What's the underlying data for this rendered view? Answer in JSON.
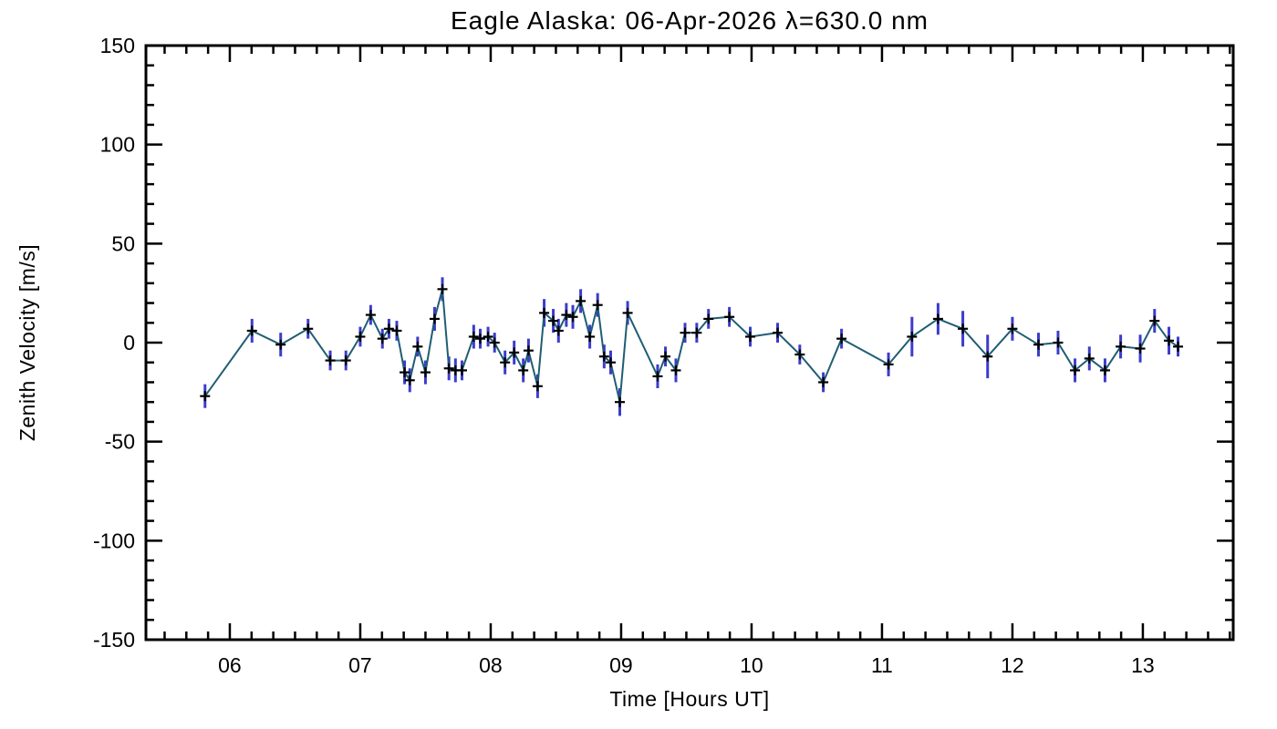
{
  "title": "Eagle Alaska: 06-Apr-2026 λ=630.0 nm",
  "chart_data": {
    "type": "line",
    "title": "Eagle Alaska: 06-Apr-2026 λ=630.0 nm",
    "xlabel": "Time [Hours UT]",
    "ylabel": "Zenith Velocity [m/s]",
    "xlim": [
      5.357,
      13.693
    ],
    "ylim": [
      -150,
      150
    ],
    "x_major_ticks": [
      6,
      7,
      8,
      9,
      10,
      11,
      12,
      13
    ],
    "x_tick_labels": [
      "06",
      "07",
      "08",
      "09",
      "10",
      "11",
      "12",
      "13"
    ],
    "x_minor_step": 0.16667,
    "y_major_step": 50,
    "y_minor_step": 10,
    "y_tick_labels": [
      "150",
      "100",
      "50",
      "0",
      "-50",
      "-100",
      "-150"
    ],
    "y_tick_values": [
      150,
      100,
      50,
      0,
      -50,
      -100,
      -150
    ],
    "grid": false,
    "legend": "none",
    "marker": "plus",
    "error_bars": "vertical",
    "colors": {
      "line": "#1f5d73",
      "error_bar": "#3c3ccd",
      "marker": "#000000",
      "axis": "#000000",
      "background": "#ffffff"
    },
    "series": [
      {
        "name": "zenith-velocity",
        "x": [
          5.81,
          6.17,
          6.39,
          6.6,
          6.77,
          6.89,
          7.0,
          7.08,
          7.17,
          7.22,
          7.28,
          7.34,
          7.38,
          7.44,
          7.5,
          7.57,
          7.63,
          7.68,
          7.73,
          7.78,
          7.87,
          7.92,
          7.98,
          8.03,
          8.11,
          8.18,
          8.25,
          8.29,
          8.36,
          8.41,
          8.48,
          8.52,
          8.58,
          8.63,
          8.69,
          8.76,
          8.82,
          8.87,
          8.92,
          8.99,
          9.05,
          9.28,
          9.34,
          9.42,
          9.49,
          9.58,
          9.67,
          9.83,
          9.99,
          10.2,
          10.37,
          10.55,
          10.69,
          11.05,
          11.23,
          11.43,
          11.62,
          11.81,
          12.0,
          12.2,
          12.35,
          12.48,
          12.59,
          12.71,
          12.83,
          12.98,
          13.09,
          13.2,
          13.27
        ],
        "y": [
          -27,
          6,
          -1,
          7,
          -9,
          -9,
          3,
          14,
          2,
          7,
          6,
          -15,
          -19,
          -2,
          -15,
          12,
          27,
          -13,
          -14,
          -14,
          3,
          2,
          3,
          0,
          -10,
          -5,
          -14,
          -4,
          -22,
          15,
          11,
          6,
          14,
          13,
          21,
          3,
          19,
          -7,
          -10,
          -30,
          15,
          -17,
          -7,
          -14,
          5,
          5,
          12,
          13,
          3,
          5,
          -6,
          -20,
          2,
          -11,
          3,
          12,
          7,
          -7,
          7,
          -1,
          0,
          -14,
          -8,
          -14,
          -2,
          -3,
          11,
          1,
          -2
        ],
        "yerr": [
          6,
          6,
          6,
          5,
          5,
          5,
          5,
          5,
          5,
          5,
          5,
          6,
          6,
          5,
          6,
          6,
          6,
          6,
          6,
          5,
          6,
          5,
          5,
          5,
          6,
          6,
          6,
          6,
          6,
          7,
          6,
          6,
          6,
          6,
          6,
          6,
          6,
          6,
          6,
          7,
          6,
          6,
          5,
          6,
          5,
          5,
          5,
          5,
          5,
          5,
          5,
          5,
          5,
          6,
          10,
          8,
          9,
          11,
          6,
          6,
          6,
          6,
          6,
          6,
          6,
          7,
          6,
          7,
          5
        ]
      }
    ]
  }
}
